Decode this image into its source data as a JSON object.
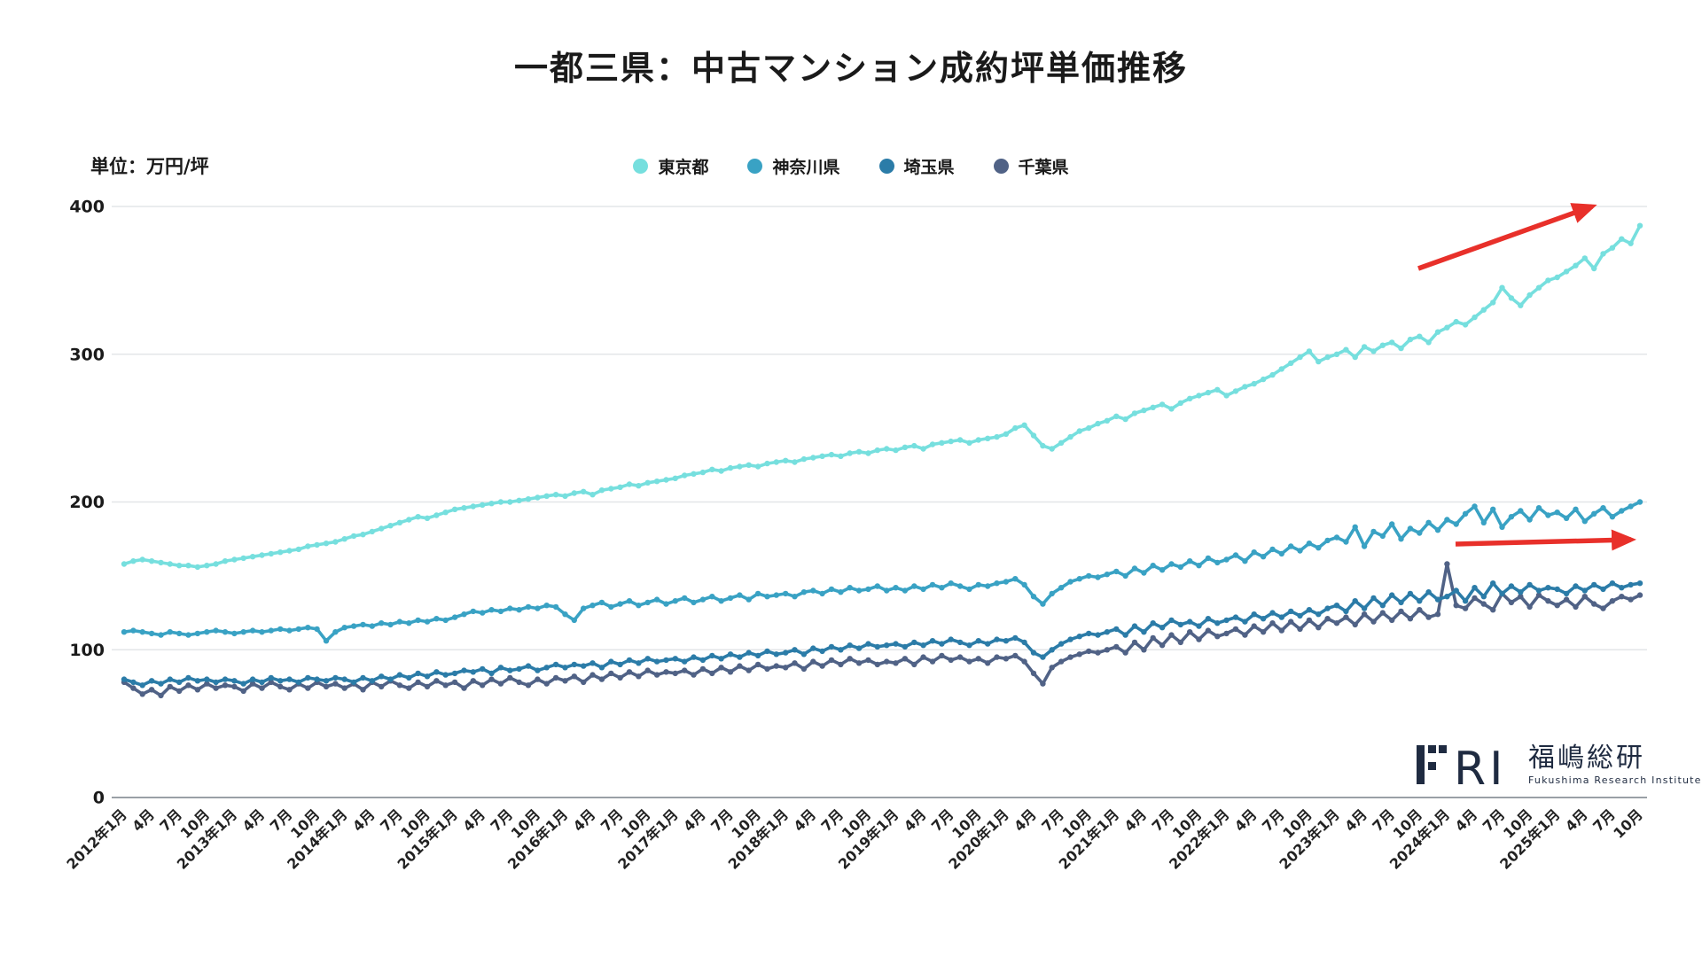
{
  "title": "一都三県：中古マンション成約坪単価推移",
  "unit_label": "単位：万円/坪",
  "legend": [
    {
      "label": "東京都",
      "color": "#76DFDE"
    },
    {
      "label": "神奈川県",
      "color": "#39A2C4"
    },
    {
      "label": "埼玉県",
      "color": "#2B7CA8"
    },
    {
      "label": "千葉県",
      "color": "#506286"
    }
  ],
  "logo": {
    "mark": "FRI",
    "name": "福嶋総研",
    "subtitle": "Fukushima Research Institute"
  },
  "colors": {
    "arrow": "#E8302A",
    "grid": "#E3E6E8",
    "axis": "#9AA0A6",
    "text": "#1a1a1a"
  },
  "chart_data": {
    "type": "line",
    "title": "一都三県：中古マンション成約坪単価推移",
    "ylabel": "万円/坪",
    "ylim": [
      0,
      400
    ],
    "y_ticks": [
      0,
      100,
      200,
      300,
      400
    ],
    "grid": "horizontal",
    "legend_position": "top-center",
    "x_start": "2012年1月",
    "x_end": "2025年10月",
    "x_interval": "monthly",
    "x_tick_labels": [
      "2012年1月",
      "4月",
      "7月",
      "10月",
      "2013年1月",
      "4月",
      "7月",
      "10月",
      "2014年1月",
      "4月",
      "7月",
      "10月",
      "2015年1月",
      "4月",
      "7月",
      "10月",
      "2016年1月",
      "4月",
      "7月",
      "10月",
      "2017年1月",
      "4月",
      "7月",
      "10月",
      "2018年1月",
      "4月",
      "7月",
      "10月",
      "2019年1月",
      "4月",
      "7月",
      "10月",
      "2020年1月",
      "4月",
      "7月",
      "10月",
      "2021年1月",
      "4月",
      "7月",
      "10月",
      "2022年1月",
      "4月",
      "7月",
      "10月",
      "2023年1月",
      "4月",
      "7月",
      "10月",
      "2024年1月",
      "4月",
      "7月",
      "10月",
      "2025年1月",
      "4月",
      "7月",
      "10月"
    ],
    "series": [
      {
        "name": "東京都",
        "color": "#76DFDE",
        "values": [
          158,
          160,
          161,
          160,
          159,
          158,
          157,
          157,
          156,
          157,
          158,
          160,
          161,
          162,
          163,
          164,
          165,
          166,
          167,
          168,
          170,
          171,
          172,
          173,
          175,
          177,
          178,
          180,
          182,
          184,
          186,
          188,
          190,
          189,
          191,
          193,
          195,
          196,
          197,
          198,
          199,
          200,
          200,
          201,
          202,
          203,
          204,
          205,
          204,
          206,
          207,
          205,
          208,
          209,
          210,
          212,
          211,
          213,
          214,
          215,
          216,
          218,
          219,
          220,
          222,
          221,
          223,
          224,
          225,
          224,
          226,
          227,
          228,
          227,
          229,
          230,
          231,
          232,
          231,
          233,
          234,
          233,
          235,
          236,
          235,
          237,
          238,
          236,
          239,
          240,
          241,
          242,
          240,
          242,
          243,
          244,
          246,
          250,
          252,
          245,
          238,
          236,
          240,
          244,
          248,
          250,
          253,
          255,
          258,
          256,
          260,
          262,
          264,
          266,
          263,
          267,
          270,
          272,
          274,
          276,
          272,
          275,
          278,
          280,
          283,
          286,
          290,
          294,
          298,
          302,
          295,
          298,
          300,
          303,
          298,
          305,
          302,
          306,
          308,
          304,
          310,
          312,
          308,
          315,
          318,
          322,
          320,
          325,
          330,
          335,
          345,
          338,
          333,
          340,
          345,
          350,
          352,
          356,
          360,
          365,
          358,
          368,
          372,
          378,
          375,
          387
        ]
      },
      {
        "name": "神奈川県",
        "color": "#39A2C4",
        "values": [
          112,
          113,
          112,
          111,
          110,
          112,
          111,
          110,
          111,
          112,
          113,
          112,
          111,
          112,
          113,
          112,
          113,
          114,
          113,
          114,
          115,
          114,
          106,
          112,
          115,
          116,
          117,
          116,
          118,
          117,
          119,
          118,
          120,
          119,
          121,
          120,
          122,
          124,
          126,
          125,
          127,
          126,
          128,
          127,
          129,
          128,
          130,
          129,
          124,
          120,
          128,
          130,
          132,
          129,
          131,
          133,
          130,
          132,
          134,
          131,
          133,
          135,
          132,
          134,
          136,
          133,
          135,
          137,
          134,
          138,
          136,
          137,
          138,
          136,
          139,
          140,
          138,
          141,
          139,
          142,
          140,
          141,
          143,
          140,
          142,
          140,
          143,
          141,
          144,
          142,
          145,
          143,
          141,
          144,
          143,
          145,
          146,
          148,
          144,
          136,
          131,
          138,
          142,
          146,
          148,
          150,
          149,
          151,
          153,
          150,
          155,
          152,
          157,
          154,
          158,
          156,
          160,
          157,
          162,
          159,
          161,
          164,
          160,
          166,
          163,
          168,
          165,
          170,
          167,
          172,
          169,
          174,
          176,
          173,
          183,
          170,
          180,
          177,
          185,
          175,
          182,
          179,
          186,
          181,
          188,
          185,
          192,
          197,
          186,
          195,
          183,
          190,
          194,
          188,
          196,
          191,
          193,
          189,
          195,
          187,
          192,
          196,
          190,
          194,
          197,
          200
        ]
      },
      {
        "name": "埼玉県",
        "color": "#2B7CA8",
        "values": [
          80,
          78,
          76,
          79,
          77,
          80,
          78,
          81,
          79,
          80,
          78,
          80,
          79,
          77,
          80,
          78,
          81,
          79,
          80,
          78,
          81,
          80,
          79,
          81,
          80,
          78,
          81,
          79,
          82,
          80,
          83,
          81,
          84,
          82,
          85,
          83,
          84,
          86,
          85,
          87,
          84,
          88,
          86,
          87,
          89,
          86,
          88,
          90,
          88,
          90,
          89,
          91,
          88,
          92,
          90,
          93,
          91,
          94,
          92,
          93,
          94,
          92,
          95,
          93,
          96,
          94,
          97,
          95,
          98,
          96,
          99,
          97,
          98,
          100,
          97,
          101,
          99,
          102,
          100,
          103,
          101,
          104,
          102,
          103,
          104,
          102,
          105,
          103,
          106,
          104,
          107,
          105,
          103,
          106,
          104,
          107,
          106,
          108,
          105,
          98,
          95,
          100,
          104,
          107,
          109,
          111,
          110,
          112,
          114,
          110,
          116,
          112,
          118,
          115,
          120,
          117,
          119,
          116,
          121,
          118,
          120,
          122,
          119,
          124,
          121,
          125,
          122,
          126,
          123,
          127,
          124,
          128,
          130,
          126,
          133,
          128,
          135,
          130,
          137,
          132,
          138,
          133,
          139,
          134,
          136,
          140,
          133,
          142,
          136,
          145,
          138,
          143,
          139,
          144,
          140,
          142,
          141,
          138,
          143,
          140,
          144,
          141,
          145,
          142,
          144,
          145
        ]
      },
      {
        "name": "千葉県",
        "color": "#506286",
        "values": [
          78,
          74,
          70,
          73,
          69,
          75,
          72,
          76,
          73,
          77,
          74,
          76,
          75,
          72,
          77,
          74,
          78,
          75,
          73,
          77,
          74,
          78,
          75,
          77,
          74,
          77,
          73,
          78,
          75,
          79,
          76,
          74,
          78,
          75,
          79,
          76,
          78,
          74,
          79,
          76,
          80,
          77,
          81,
          78,
          76,
          80,
          77,
          81,
          79,
          82,
          78,
          83,
          80,
          84,
          81,
          85,
          82,
          86,
          83,
          85,
          84,
          86,
          83,
          87,
          84,
          88,
          85,
          89,
          86,
          90,
          87,
          89,
          88,
          91,
          87,
          92,
          89,
          93,
          90,
          94,
          91,
          93,
          90,
          92,
          91,
          94,
          90,
          95,
          92,
          96,
          93,
          95,
          92,
          94,
          91,
          95,
          94,
          96,
          92,
          84,
          77,
          88,
          92,
          95,
          97,
          99,
          98,
          100,
          102,
          98,
          105,
          100,
          108,
          103,
          110,
          105,
          112,
          107,
          113,
          109,
          111,
          114,
          110,
          116,
          112,
          118,
          113,
          119,
          114,
          120,
          115,
          121,
          118,
          122,
          117,
          124,
          119,
          125,
          120,
          126,
          121,
          127,
          122,
          124,
          158,
          130,
          128,
          135,
          131,
          127,
          138,
          132,
          136,
          129,
          137,
          133,
          130,
          134,
          129,
          136,
          131,
          128,
          133,
          136,
          134,
          137
        ]
      }
    ],
    "annotations": [
      {
        "type": "arrow",
        "direction": "up-right",
        "color": "#E8302A",
        "target_series": "東京都"
      },
      {
        "type": "arrow",
        "direction": "right",
        "color": "#E8302A",
        "target_series": "神奈川県"
      }
    ]
  }
}
